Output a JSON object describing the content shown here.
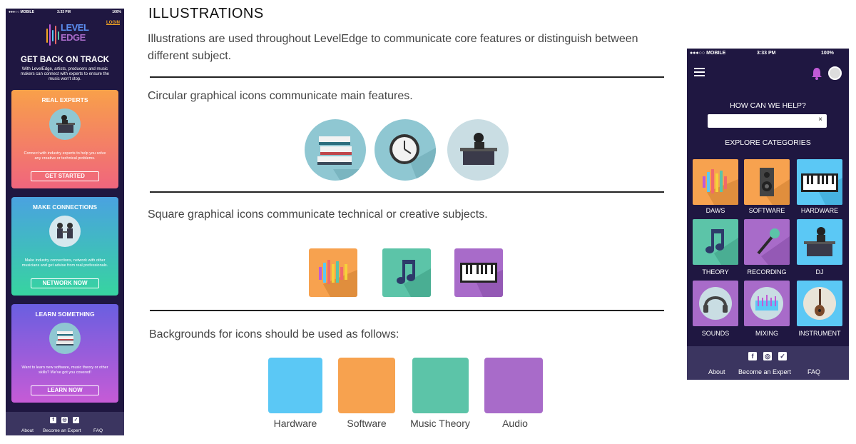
{
  "left_phone": {
    "status": {
      "carrier": "●●●○○ MOBILE",
      "time": "3:33 PM",
      "battery": "100%"
    },
    "logo": {
      "line1": "LEVEL",
      "line2": "EDGE"
    },
    "login": "LOGIN",
    "hero_title": "GET BACK ON TRACK",
    "hero_desc": "With LevelEdge, artists, producers and music makers can connect with experts to ensure the music won't stop.",
    "cards": [
      {
        "title": "REAL EXPERTS",
        "desc": "Connect with industry experts to help you solve any creative or technical problems.",
        "button": "GET STARTED"
      },
      {
        "title": "MAKE CONNECTIONS",
        "desc": "Make industry connections, network with other musicians and get advise from real professionals.",
        "button": "NETWORK NOW"
      },
      {
        "title": "LEARN SOMETHING",
        "desc": "Want to learn new software, music theory or other skills? We've got you covered!",
        "button": "LEARN NOW"
      }
    ],
    "footer": {
      "links": [
        "About",
        "Become an Expert",
        "FAQ"
      ]
    }
  },
  "doc": {
    "title": "ILLUSTRATIONS",
    "intro": "Illustrations are used throughout LevelEdge to communicate core features or distinguish between different subject.",
    "circular_heading": "Circular graphical icons communicate main features.",
    "square_heading": "Square graphical icons communicate technical or creative subjects.",
    "backgrounds_heading": "Backgrounds for icons should be used as follows:",
    "swatches": [
      {
        "label": "Hardware",
        "color": "#5bc8f5"
      },
      {
        "label": "Software",
        "color": "#f7a24f"
      },
      {
        "label": "Music Theory",
        "color": "#5cc4a8"
      },
      {
        "label": "Audio",
        "color": "#a86bc9"
      }
    ]
  },
  "right_phone": {
    "status": {
      "carrier": "●●●○○ MOBILE",
      "time": "3:33 PM",
      "battery": "100%"
    },
    "help_title": "HOW CAN WE HELP?",
    "search_clear": "×",
    "explore_title": "EXPLORE CATEGORIES",
    "categories": [
      {
        "label": "DAWS",
        "color": "#f7a24f",
        "icon": "audio-bars-icon"
      },
      {
        "label": "SOFTWARE",
        "color": "#f7a24f",
        "icon": "speaker-icon"
      },
      {
        "label": "HARDWARE",
        "color": "#5bc8f5",
        "icon": "keyboard-icon"
      },
      {
        "label": "THEORY",
        "color": "#5cc4a8",
        "icon": "music-note-icon"
      },
      {
        "label": "RECORDING",
        "color": "#a86bc9",
        "icon": "microphone-icon"
      },
      {
        "label": "DJ",
        "color": "#5bc8f5",
        "icon": "dj-icon"
      },
      {
        "label": "SOUNDS",
        "color": "#a86bc9",
        "icon": "headphones-icon"
      },
      {
        "label": "MIXING",
        "color": "#a86bc9",
        "icon": "mixer-icon"
      },
      {
        "label": "INSTRUMENT",
        "color": "#5bc8f5",
        "icon": "guitar-icon"
      }
    ],
    "footer": {
      "links": [
        "About",
        "Become an Expert",
        "FAQ"
      ]
    }
  },
  "colors": {
    "navy": "#1f1741",
    "footer": "#3b3560",
    "accent_orange": "#f5a623",
    "bell": "#c15ad6"
  }
}
